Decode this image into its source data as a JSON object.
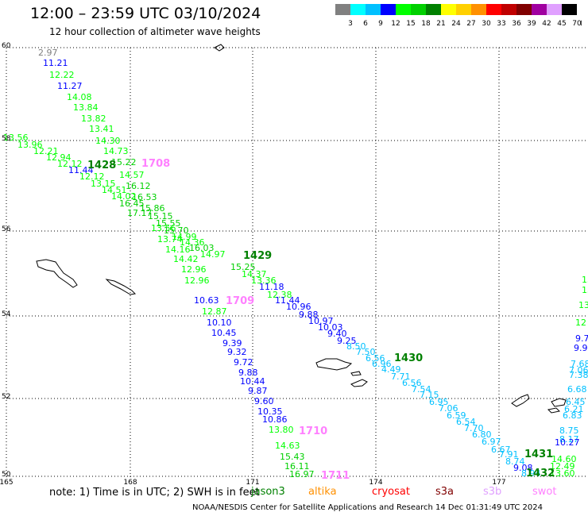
{
  "header": {
    "title": "12:00 – 23:59 UTC 03/10/2024",
    "subtitle": "12 hour collection of altimeter wave heights"
  },
  "legend": {
    "unit": "(ft)",
    "bins": [
      {
        "label": "3",
        "color": "#808080"
      },
      {
        "label": "6",
        "color": "#00ffff"
      },
      {
        "label": "9",
        "color": "#00c0ff"
      },
      {
        "label": "12",
        "color": "#0000ff"
      },
      {
        "label": "15",
        "color": "#00ff00"
      },
      {
        "label": "18",
        "color": "#00d000"
      },
      {
        "label": "21",
        "color": "#008000"
      },
      {
        "label": "24",
        "color": "#ffff00"
      },
      {
        "label": "27",
        "color": "#ffd000"
      },
      {
        "label": "30",
        "color": "#ff9000"
      },
      {
        "label": "33",
        "color": "#ff0000"
      },
      {
        "label": "36",
        "color": "#c00000"
      },
      {
        "label": "39",
        "color": "#800000"
      },
      {
        "label": "42",
        "color": "#a000a0"
      },
      {
        "label": "45",
        "color": "#e0a0ff"
      },
      {
        "label": "70",
        "color": "#000000"
      }
    ]
  },
  "map": {
    "lat_labels": [
      "60",
      "58",
      "56",
      "54",
      "52",
      "50"
    ],
    "lon_labels": [
      "165",
      "168",
      "171",
      "174",
      "177"
    ]
  },
  "passes": [
    {
      "time": "1428",
      "color": "#008000"
    },
    {
      "time": "1708",
      "color": "#ff80ff"
    },
    {
      "time": "1429",
      "color": "#008000"
    },
    {
      "time": "1709",
      "color": "#ff80ff"
    },
    {
      "time": "1430",
      "color": "#008000"
    },
    {
      "time": "1710",
      "color": "#ff80ff"
    },
    {
      "time": "1711",
      "color": "#ff80ff"
    },
    {
      "time": "1431",
      "color": "#008000"
    },
    {
      "time": "1432",
      "color": "#008000"
    }
  ],
  "track_a_values": [
    "2.97",
    "11.21",
    "12.22",
    "11.27",
    "14.08",
    "13.84",
    "13.82",
    "13.41",
    "14.30",
    "14.73",
    "15.22",
    "14.57",
    "16.12",
    "16.53",
    "15.86",
    "15.15",
    "15.55",
    "15.70",
    "14.99",
    "14.36",
    "16.03",
    "14.97",
    "15.25",
    "14.37",
    "13.36",
    "11.18",
    "12.38",
    "11.44",
    "10.96",
    "9.88",
    "10.97",
    "10.03",
    "9.40",
    "9.25",
    "8.50",
    "7.50",
    "6.56",
    "6.96",
    "4.49",
    "7.71",
    "6.56",
    "7.54",
    "7.15",
    "6.95",
    "7.06",
    "6.59",
    "6.54",
    "7.70",
    "6.80",
    "6.97",
    "6.67",
    "7.91",
    "8.74",
    "9.08",
    "8.94"
  ],
  "track_b_values": [
    "13.56",
    "13.96",
    "12.21",
    "12.94",
    "12.12",
    "11.44",
    "12.12",
    "13.15",
    "14.51",
    "14.02",
    "16.45",
    "17.17",
    "13.56",
    "13.74",
    "14.16",
    "14.42",
    "12.96",
    "12.96",
    "10.63",
    "12.87",
    "10.10",
    "10.45",
    "9.39",
    "9.32",
    "9.72",
    "9.88",
    "10.44",
    "9.87",
    "9.60",
    "10.35",
    "10.86",
    "13.80",
    "14.63",
    "15.43",
    "16.11",
    "16.97"
  ],
  "right_edge_values": [
    "13",
    "13",
    "13",
    "12",
    "9.7",
    "9.9",
    "7.68",
    "7.06",
    "7.38",
    "6.68",
    "6.45",
    "6.21",
    "6.83",
    "8.75",
    "8.17",
    "10.27",
    "14.60",
    "12.49",
    "13.60"
  ],
  "footer": {
    "note": "note:  1) Time is in UTC; 2) SWH is in feet",
    "satellites": [
      {
        "name": "jason3",
        "color": "#008000"
      },
      {
        "name": "altika",
        "color": "#ff9000"
      },
      {
        "name": "cryosat",
        "color": "#ff0000"
      },
      {
        "name": "s3a",
        "color": "#800000"
      },
      {
        "name": "s3b",
        "color": "#e0a0ff"
      },
      {
        "name": "swot",
        "color": "#ff80ff"
      }
    ],
    "credit": "NOAA/NESDIS Center for Satellite Applications and Research    14 Dec 01:31:49 UTC 2024"
  },
  "value_colors": {
    "grey": "#808080",
    "cyan": "#00c0ff",
    "blue": "#0000ff",
    "lightgreen": "#00ff00",
    "midgreen": "#00d000"
  }
}
